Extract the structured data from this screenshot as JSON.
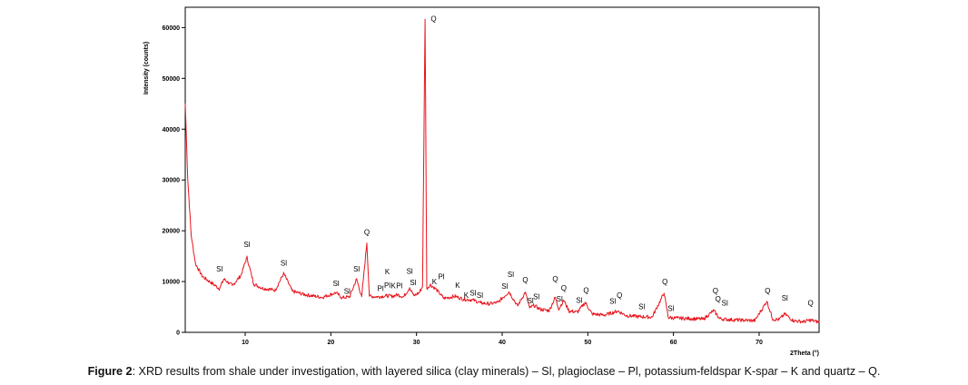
{
  "caption": {
    "label": "Figure 2",
    "text": ": XRD results from shale under investigation, with layered silica (clay minerals) – Sl, plagioclase – Pl, potassium-feldspar K-spar – K and quartz – Q."
  },
  "chart_data": {
    "type": "line",
    "xlabel": "2Theta (°)",
    "ylabel": "Intensity (counts)",
    "xlim": [
      3,
      77
    ],
    "ylim": [
      0,
      64000
    ],
    "xticks": [
      10,
      20,
      30,
      40,
      50,
      60,
      70
    ],
    "yticks": [
      0,
      10000,
      20000,
      30000,
      40000,
      50000,
      60000
    ],
    "grid": false,
    "series_color": "#e8141c",
    "series": [
      {
        "x": [
          3.0,
          3.3,
          3.7,
          4.2,
          5.0,
          6.0,
          7.0,
          7.5,
          8.5,
          9.5,
          10.2,
          11.0,
          12.0,
          13.5,
          14.5,
          15.5,
          17.0,
          19.0,
          20.6,
          21.3,
          22.2,
          23.0,
          23.6,
          24.2,
          24.5,
          25.5,
          26.5,
          27.2,
          27.8,
          28.5,
          29.2,
          29.7,
          30.3,
          30.7,
          31.0,
          31.2,
          31.6,
          32.2,
          33.2,
          34.5,
          35.5,
          36.5,
          37.5,
          38.5,
          39.5,
          40.8,
          41.8,
          42.7,
          43.2,
          43.7,
          44.5,
          45.5,
          46.2,
          46.6,
          47.2,
          47.8,
          48.8,
          49.7,
          50.5,
          52.0,
          53.5,
          54.5,
          56.0,
          57.5,
          58.9,
          59.4,
          60.5,
          62.0,
          63.5,
          64.7,
          65.4,
          66.5,
          68.0,
          69.5,
          70.9,
          71.6,
          72.3,
          73.0,
          74.0,
          75.2,
          76.0,
          77.0
        ],
        "y": [
          45000,
          30000,
          19000,
          13500,
          11000,
          9800,
          8600,
          10500,
          9200,
          11200,
          14800,
          9500,
          8700,
          8300,
          11600,
          8100,
          7400,
          6900,
          7800,
          6800,
          7000,
          10500,
          7000,
          17600,
          7100,
          7000,
          7200,
          7100,
          7400,
          7000,
          8800,
          7200,
          7800,
          9000,
          61500,
          8600,
          9400,
          8600,
          6700,
          7100,
          6500,
          6400,
          5800,
          5600,
          5900,
          8000,
          5200,
          7900,
          4800,
          5300,
          4500,
          4300,
          6900,
          4600,
          6300,
          4200,
          4000,
          5900,
          3600,
          3400,
          4200,
          3300,
          3100,
          3000,
          7700,
          2900,
          2800,
          2700,
          2600,
          4300,
          2700,
          2500,
          2400,
          2300,
          6100,
          2600,
          2500,
          3600,
          2300,
          2100,
          2400,
          2000
        ]
      }
    ],
    "annotations": [
      {
        "text": "Q",
        "x": 32.0,
        "y": 61200
      },
      {
        "text": "Sl",
        "x": 7.0,
        "y": 12000
      },
      {
        "text": "Sl",
        "x": 10.2,
        "y": 16800
      },
      {
        "text": "Sl",
        "x": 14.5,
        "y": 13100
      },
      {
        "text": "Sl",
        "x": 20.6,
        "y": 9100
      },
      {
        "text": "Sl",
        "x": 21.9,
        "y": 7600
      },
      {
        "text": "Sl",
        "x": 23.0,
        "y": 12000
      },
      {
        "text": "Q",
        "x": 24.2,
        "y": 19200
      },
      {
        "text": "K",
        "x": 26.6,
        "y": 11400
      },
      {
        "text": "Pl",
        "x": 25.8,
        "y": 8100
      },
      {
        "text": "Pl",
        "x": 26.6,
        "y": 8800
      },
      {
        "text": "K",
        "x": 27.3,
        "y": 8700
      },
      {
        "text": "Pl",
        "x": 28.0,
        "y": 8700
      },
      {
        "text": "Sl",
        "x": 29.2,
        "y": 11500
      },
      {
        "text": "Sl",
        "x": 29.6,
        "y": 9300
      },
      {
        "text": "K",
        "x": 32.1,
        "y": 9500
      },
      {
        "text": "Pl",
        "x": 32.9,
        "y": 10500
      },
      {
        "text": "K",
        "x": 34.8,
        "y": 8800
      },
      {
        "text": "K",
        "x": 35.8,
        "y": 6800
      },
      {
        "text": "Sl",
        "x": 36.6,
        "y": 7200
      },
      {
        "text": "Sl",
        "x": 37.4,
        "y": 6800
      },
      {
        "text": "Sl",
        "x": 40.3,
        "y": 8600
      },
      {
        "text": "Sl",
        "x": 41.0,
        "y": 10900
      },
      {
        "text": "Q",
        "x": 42.7,
        "y": 9800
      },
      {
        "text": "Sl",
        "x": 43.3,
        "y": 5700
      },
      {
        "text": "Sl",
        "x": 44.0,
        "y": 6500
      },
      {
        "text": "Q",
        "x": 46.2,
        "y": 10000
      },
      {
        "text": "Sl",
        "x": 46.7,
        "y": 6100
      },
      {
        "text": "Q",
        "x": 47.2,
        "y": 8200
      },
      {
        "text": "Sl",
        "x": 49.0,
        "y": 5800
      },
      {
        "text": "Q",
        "x": 49.8,
        "y": 7800
      },
      {
        "text": "Sl",
        "x": 52.9,
        "y": 5600
      },
      {
        "text": "Q",
        "x": 53.7,
        "y": 6800
      },
      {
        "text": "Sl",
        "x": 56.3,
        "y": 4600
      },
      {
        "text": "Q",
        "x": 59.0,
        "y": 9500
      },
      {
        "text": "Sl",
        "x": 59.7,
        "y": 4200
      },
      {
        "text": "Q",
        "x": 64.9,
        "y": 7700
      },
      {
        "text": "Q",
        "x": 65.2,
        "y": 6100
      },
      {
        "text": "Sl",
        "x": 66.0,
        "y": 5300
      },
      {
        "text": "Q",
        "x": 71.0,
        "y": 7700
      },
      {
        "text": "Sl",
        "x": 73.0,
        "y": 6300
      },
      {
        "text": "Q",
        "x": 76.0,
        "y": 5300
      }
    ]
  }
}
